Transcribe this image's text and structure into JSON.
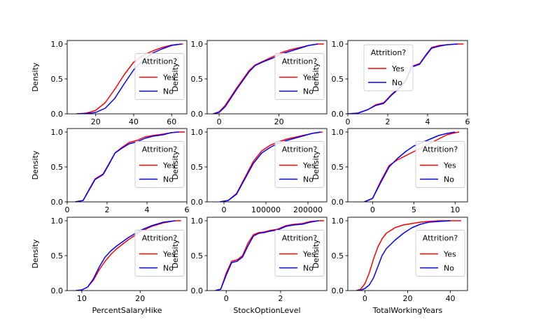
{
  "chart_data": [
    {
      "type": "line",
      "xlabel": "",
      "ylabel": "Density",
      "xlim": [
        5,
        68
      ],
      "ylim": [
        0,
        1.05
      ],
      "xticks": [
        20,
        40,
        60
      ],
      "yticks": [
        0.0,
        0.5,
        1.0
      ],
      "legend": {
        "title": "Attrition?",
        "placement": "center-right"
      },
      "series": [
        {
          "name": "Yes",
          "color": "#ff0000",
          "x": [
            10,
            15,
            20,
            25,
            30,
            35,
            40,
            45,
            50,
            55,
            60,
            66
          ],
          "y": [
            0,
            0.01,
            0.05,
            0.16,
            0.35,
            0.56,
            0.74,
            0.84,
            0.9,
            0.95,
            0.985,
            1.0
          ]
        },
        {
          "name": "No",
          "color": "#0000ff",
          "x": [
            10,
            15,
            20,
            25,
            30,
            35,
            40,
            45,
            50,
            55,
            60,
            65
          ],
          "y": [
            0,
            0.005,
            0.02,
            0.08,
            0.22,
            0.43,
            0.63,
            0.77,
            0.87,
            0.93,
            0.98,
            1.0
          ]
        }
      ]
    },
    {
      "type": "line",
      "xlabel": "",
      "ylabel": "Density",
      "xlim": [
        -4,
        36
      ],
      "ylim": [
        0,
        1.05
      ],
      "xticks": [
        0,
        20
      ],
      "yticks": [
        0.0,
        0.5,
        1.0
      ],
      "legend": {
        "title": "Attrition?",
        "placement": "center-right"
      },
      "series": [
        {
          "name": "Yes",
          "color": "#ff0000",
          "x": [
            -2,
            0,
            2,
            4,
            6,
            8,
            10,
            12,
            15,
            18,
            21,
            24,
            27,
            30,
            33,
            35
          ],
          "y": [
            0,
            0.03,
            0.12,
            0.25,
            0.38,
            0.5,
            0.62,
            0.7,
            0.76,
            0.82,
            0.88,
            0.92,
            0.95,
            0.98,
            1.0,
            1.0
          ]
        },
        {
          "name": "No",
          "color": "#0000ff",
          "x": [
            -2,
            0,
            2,
            4,
            6,
            8,
            10,
            12,
            15,
            18,
            21,
            24,
            27,
            30,
            33
          ],
          "y": [
            0,
            0.02,
            0.1,
            0.23,
            0.36,
            0.48,
            0.6,
            0.69,
            0.75,
            0.8,
            0.86,
            0.9,
            0.94,
            0.98,
            1.0
          ]
        }
      ]
    },
    {
      "type": "line",
      "xlabel": "",
      "ylabel": "Density",
      "xlim": [
        0,
        6
      ],
      "ylim": [
        0,
        1.05
      ],
      "xticks": [
        0,
        2,
        4,
        6
      ],
      "yticks": [
        0.0,
        0.5,
        1.0
      ],
      "legend": {
        "title": "Attrition?",
        "placement": "upper-left"
      },
      "series": [
        {
          "name": "Yes",
          "color": "#ff0000",
          "x": [
            0,
            0.5,
            1,
            1.4,
            1.8,
            2.2,
            2.6,
            2.9,
            3.2,
            3.6,
            3.9,
            4.2,
            4.6,
            5,
            5.5,
            5.8
          ],
          "y": [
            0,
            0.01,
            0.06,
            0.13,
            0.16,
            0.28,
            0.38,
            0.48,
            0.68,
            0.72,
            0.84,
            0.95,
            0.98,
            0.99,
            1.0,
            1.0
          ]
        },
        {
          "name": "No",
          "color": "#0000ff",
          "x": [
            0,
            0.5,
            1,
            1.4,
            1.8,
            2.2,
            2.6,
            2.9,
            3.2,
            3.6,
            3.9,
            4.2,
            4.6,
            5,
            5.5
          ],
          "y": [
            0,
            0.01,
            0.06,
            0.12,
            0.15,
            0.27,
            0.37,
            0.47,
            0.67,
            0.71,
            0.83,
            0.94,
            0.97,
            0.99,
            1.0
          ]
        }
      ]
    },
    {
      "type": "line",
      "xlabel": "",
      "ylabel": "Density",
      "xlim": [
        0,
        6
      ],
      "ylim": [
        0,
        1.05
      ],
      "xticks": [
        0,
        2,
        4,
        6
      ],
      "yticks": [
        0.0,
        0.5,
        1.0
      ],
      "legend": {
        "title": "Attrition?",
        "placement": "center-right"
      },
      "series": [
        {
          "name": "Yes",
          "color": "#ff0000",
          "x": [
            0.4,
            0.8,
            1.1,
            1.4,
            1.8,
            2.1,
            2.4,
            2.7,
            3.1,
            3.5,
            3.9,
            4.3,
            4.8,
            5.2,
            5.6,
            5.9
          ],
          "y": [
            0,
            0.02,
            0.18,
            0.33,
            0.4,
            0.55,
            0.7,
            0.77,
            0.85,
            0.88,
            0.93,
            0.95,
            0.97,
            0.99,
            1.0,
            1.0
          ]
        },
        {
          "name": "No",
          "color": "#0000ff",
          "x": [
            0.4,
            0.8,
            1.1,
            1.4,
            1.8,
            2.1,
            2.4,
            2.7,
            3.1,
            3.5,
            3.9,
            4.3,
            4.8,
            5.2,
            5.6
          ],
          "y": [
            0,
            0.02,
            0.17,
            0.32,
            0.39,
            0.54,
            0.7,
            0.76,
            0.83,
            0.86,
            0.91,
            0.94,
            0.96,
            0.99,
            1.0
          ]
        }
      ]
    },
    {
      "type": "line",
      "xlabel": "",
      "ylabel": "Density",
      "xlim": [
        -40000,
        245000
      ],
      "ylim": [
        0,
        1.05
      ],
      "xticks": [
        0,
        100000,
        200000
      ],
      "yticks": [
        0.0,
        0.5,
        1.0
      ],
      "legend": {
        "title": "Attrition?",
        "placement": "center-right"
      },
      "series": [
        {
          "name": "Yes",
          "color": "#ff0000",
          "x": [
            -10000,
            10000,
            30000,
            50000,
            70000,
            90000,
            110000,
            130000,
            150000,
            180000,
            210000,
            235000
          ],
          "y": [
            0,
            0.02,
            0.12,
            0.35,
            0.58,
            0.73,
            0.81,
            0.86,
            0.9,
            0.94,
            0.98,
            1.0
          ]
        },
        {
          "name": "No",
          "color": "#0000ff",
          "x": [
            -10000,
            10000,
            30000,
            50000,
            70000,
            90000,
            110000,
            130000,
            150000,
            180000,
            210000,
            230000
          ],
          "y": [
            0,
            0.02,
            0.11,
            0.33,
            0.55,
            0.7,
            0.78,
            0.84,
            0.88,
            0.93,
            0.98,
            1.0
          ]
        }
      ]
    },
    {
      "type": "line",
      "xlabel": "",
      "ylabel": "Density",
      "xlim": [
        -3,
        11.5
      ],
      "ylim": [
        0,
        1.05
      ],
      "xticks": [
        0,
        5,
        10
      ],
      "yticks": [
        0.0,
        0.5,
        1.0
      ],
      "legend": {
        "title": "Attrition?",
        "placement": "center-right"
      },
      "series": [
        {
          "name": "Yes",
          "color": "#ff0000",
          "x": [
            -1,
            0,
            1,
            2,
            3,
            4,
            5,
            6,
            7,
            8,
            9,
            10,
            10.5
          ],
          "y": [
            0,
            0.05,
            0.3,
            0.52,
            0.6,
            0.66,
            0.72,
            0.78,
            0.84,
            0.9,
            0.96,
            0.99,
            1.0
          ]
        },
        {
          "name": "No",
          "color": "#0000ff",
          "x": [
            -1,
            0,
            1,
            2,
            3,
            4,
            5,
            6,
            7,
            8,
            9,
            10
          ],
          "y": [
            0,
            0.05,
            0.28,
            0.5,
            0.62,
            0.72,
            0.8,
            0.85,
            0.9,
            0.95,
            0.98,
            1.0
          ]
        }
      ]
    },
    {
      "type": "line",
      "xlabel": "PercentSalaryHike",
      "ylabel": "Density",
      "xlim": [
        7.5,
        28
      ],
      "ylim": [
        0,
        1.05
      ],
      "xticks": [
        10,
        20
      ],
      "yticks": [
        0.0,
        0.5,
        1.0
      ],
      "legend": {
        "title": "Attrition?",
        "placement": "center-right"
      },
      "series": [
        {
          "name": "Yes",
          "color": "#ff0000",
          "x": [
            9,
            10,
            11,
            12,
            13,
            14,
            15,
            16,
            18,
            20,
            22,
            24,
            26,
            27
          ],
          "y": [
            0,
            0.01,
            0.05,
            0.15,
            0.3,
            0.42,
            0.52,
            0.6,
            0.73,
            0.84,
            0.92,
            0.97,
            1.0,
            1.0
          ]
        },
        {
          "name": "No",
          "color": "#0000ff",
          "x": [
            9,
            10,
            11,
            12,
            13,
            14,
            15,
            16,
            18,
            20,
            22,
            24,
            26
          ],
          "y": [
            0,
            0.01,
            0.05,
            0.17,
            0.34,
            0.48,
            0.57,
            0.64,
            0.76,
            0.86,
            0.93,
            0.98,
            1.0
          ]
        }
      ]
    },
    {
      "type": "line",
      "xlabel": "StockOptionLevel",
      "ylabel": "Density",
      "xlim": [
        -0.7,
        3.7
      ],
      "ylim": [
        0,
        1.05
      ],
      "xticks": [
        0,
        2
      ],
      "yticks": [
        0.0,
        0.5,
        1.0
      ],
      "legend": {
        "title": "Attrition?",
        "placement": "center-right"
      },
      "series": [
        {
          "name": "Yes",
          "color": "#ff0000",
          "x": [
            -0.4,
            -0.2,
            0,
            0.2,
            0.4,
            0.6,
            0.8,
            1.0,
            1.2,
            1.4,
            1.6,
            1.9,
            2.2,
            2.5,
            2.8,
            3.1,
            3.4,
            3.6
          ],
          "y": [
            0,
            0.02,
            0.25,
            0.42,
            0.44,
            0.5,
            0.68,
            0.8,
            0.83,
            0.84,
            0.86,
            0.88,
            0.93,
            0.95,
            0.96,
            0.99,
            1.0,
            1.0
          ]
        },
        {
          "name": "No",
          "color": "#0000ff",
          "x": [
            -0.4,
            -0.2,
            0,
            0.2,
            0.4,
            0.6,
            0.8,
            1.0,
            1.2,
            1.4,
            1.6,
            1.9,
            2.2,
            2.5,
            2.8,
            3.1,
            3.4
          ],
          "y": [
            0,
            0.02,
            0.22,
            0.4,
            0.42,
            0.48,
            0.64,
            0.78,
            0.82,
            0.83,
            0.85,
            0.87,
            0.92,
            0.94,
            0.95,
            0.98,
            1.0
          ]
        }
      ]
    },
    {
      "type": "line",
      "xlabel": "TotalWorkingYears",
      "ylabel": "Density",
      "xlim": [
        -8,
        48
      ],
      "ylim": [
        0,
        1.05
      ],
      "xticks": [
        0,
        20,
        40
      ],
      "yticks": [
        0.0,
        0.5,
        1.0
      ],
      "legend": {
        "title": "Attrition?",
        "placement": "center-right"
      },
      "series": [
        {
          "name": "Yes",
          "color": "#ff0000",
          "x": [
            -4,
            -2,
            0,
            2,
            4,
            6,
            8,
            10,
            14,
            18,
            22,
            26,
            30,
            35,
            40,
            45
          ],
          "y": [
            0,
            0.02,
            0.1,
            0.25,
            0.45,
            0.62,
            0.74,
            0.82,
            0.9,
            0.94,
            0.96,
            0.98,
            0.99,
            1.0,
            1.0,
            1.0
          ]
        },
        {
          "name": "No",
          "color": "#0000ff",
          "x": [
            -4,
            -2,
            0,
            2,
            4,
            6,
            8,
            10,
            14,
            18,
            22,
            26,
            30,
            35,
            40
          ],
          "y": [
            0,
            0.005,
            0.03,
            0.08,
            0.18,
            0.34,
            0.5,
            0.6,
            0.72,
            0.82,
            0.9,
            0.95,
            0.98,
            0.99,
            1.0
          ]
        }
      ]
    }
  ]
}
